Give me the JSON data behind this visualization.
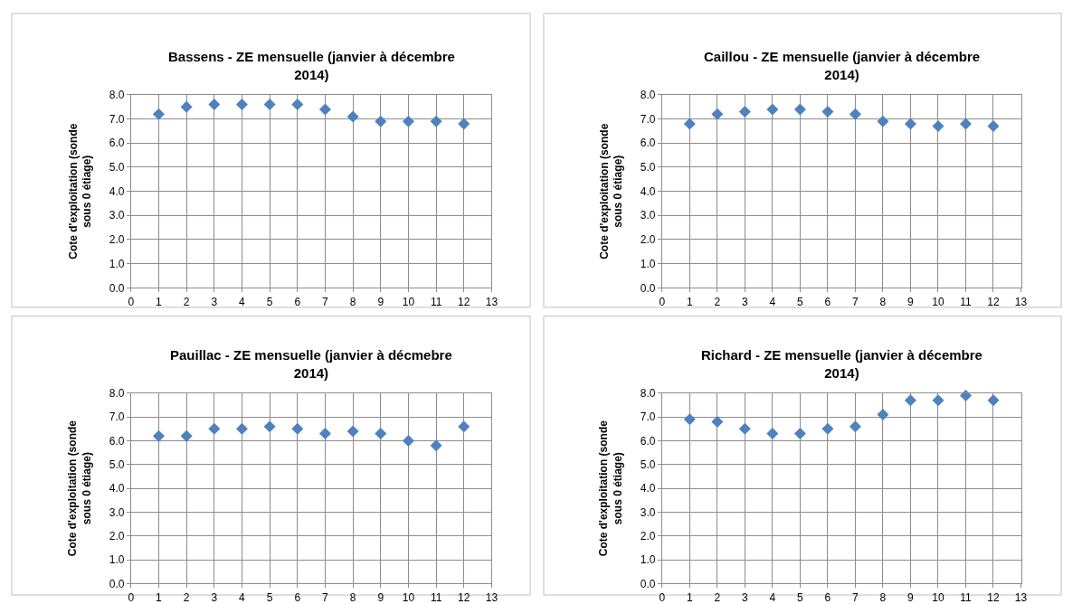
{
  "chart_data": [
    {
      "type": "scatter",
      "title": "Bassens - ZE mensuelle (janvier à décembre 2014)",
      "ylabel": "Cote d'exploitation (sonde sous 0 étiage)",
      "x": [
        1,
        2,
        3,
        4,
        5,
        6,
        7,
        8,
        9,
        10,
        11,
        12
      ],
      "values": [
        7.2,
        7.5,
        7.6,
        7.6,
        7.6,
        7.6,
        7.4,
        7.1,
        6.9,
        6.9,
        6.9,
        6.8
      ],
      "color": "#4f81bd",
      "marker": "diamond",
      "xlim": [
        0,
        13
      ],
      "xticks": [
        0,
        1,
        2,
        3,
        4,
        5,
        6,
        7,
        8,
        9,
        10,
        11,
        12,
        13
      ],
      "ylim": [
        0,
        8
      ],
      "yticks": [
        {
          "value": 0,
          "label": "0.0"
        },
        {
          "value": 1,
          "label": "1.0"
        },
        {
          "value": 2,
          "label": "2.0"
        },
        {
          "value": 3,
          "label": "3.0"
        },
        {
          "value": 4,
          "label": "4.0"
        },
        {
          "value": 5,
          "label": "5.0"
        },
        {
          "value": 6,
          "label": "6.0"
        },
        {
          "value": 7,
          "label": "7.0"
        },
        {
          "value": 8,
          "label": "8.0"
        }
      ],
      "grid": true
    },
    {
      "type": "scatter",
      "title": "Caillou - ZE mensuelle (janvier à décembre 2014)",
      "ylabel": "Cote d'exploitation (sonde sous 0 étiage)",
      "x": [
        1,
        2,
        3,
        4,
        5,
        6,
        7,
        8,
        9,
        10,
        11,
        12
      ],
      "values": [
        6.8,
        7.2,
        7.3,
        7.4,
        7.4,
        7.3,
        7.2,
        6.9,
        6.8,
        6.7,
        6.8,
        6.7
      ],
      "color": "#4f81bd",
      "marker": "diamond",
      "xlim": [
        0,
        13
      ],
      "xticks": [
        0,
        1,
        2,
        3,
        4,
        5,
        6,
        7,
        8,
        9,
        10,
        11,
        12,
        13
      ],
      "ylim": [
        0,
        8
      ],
      "yticks": [
        {
          "value": 0,
          "label": "0.0"
        },
        {
          "value": 1,
          "label": "1.0"
        },
        {
          "value": 2,
          "label": "2.0"
        },
        {
          "value": 3,
          "label": "3.0"
        },
        {
          "value": 4,
          "label": "4.0"
        },
        {
          "value": 5,
          "label": "5.0"
        },
        {
          "value": 6,
          "label": "6.0"
        },
        {
          "value": 7,
          "label": "7.0"
        },
        {
          "value": 8,
          "label": "8.0"
        }
      ],
      "grid": true
    },
    {
      "type": "scatter",
      "title": "Pauillac - ZE mensuelle (janvier à décmebre 2014)",
      "ylabel": "Cote d'exploitation (sonde sous 0 étiage)",
      "x": [
        1,
        2,
        3,
        4,
        5,
        6,
        7,
        8,
        9,
        10,
        11,
        12
      ],
      "values": [
        6.2,
        6.2,
        6.5,
        6.5,
        6.6,
        6.5,
        6.3,
        6.4,
        6.3,
        6.0,
        5.8,
        6.6
      ],
      "color": "#4f81bd",
      "marker": "diamond",
      "xlim": [
        0,
        13
      ],
      "xticks": [
        0,
        1,
        2,
        3,
        4,
        5,
        6,
        7,
        8,
        9,
        10,
        11,
        12,
        13
      ],
      "ylim": [
        0,
        8
      ],
      "yticks": [
        {
          "value": 0,
          "label": "0.0"
        },
        {
          "value": 1,
          "label": "1.0"
        },
        {
          "value": 2,
          "label": "2.0"
        },
        {
          "value": 3,
          "label": "3.0"
        },
        {
          "value": 4,
          "label": "4.0"
        },
        {
          "value": 5,
          "label": "5.0"
        },
        {
          "value": 6,
          "label": "6.0"
        },
        {
          "value": 7,
          "label": "7.0"
        },
        {
          "value": 8,
          "label": "8.0"
        }
      ],
      "grid": true
    },
    {
      "type": "scatter",
      "title": "Richard - ZE mensuelle (janvier à décembre 2014)",
      "ylabel": "Cote d'exploitation (sonde sous 0 étiage)",
      "x": [
        1,
        2,
        3,
        4,
        5,
        6,
        7,
        8,
        9,
        10,
        11,
        12
      ],
      "values": [
        6.9,
        6.8,
        6.5,
        6.3,
        6.3,
        6.5,
        6.6,
        7.1,
        7.7,
        7.7,
        7.9,
        7.7
      ],
      "color": "#4f81bd",
      "marker": "diamond",
      "xlim": [
        0,
        13
      ],
      "xticks": [
        0,
        1,
        2,
        3,
        4,
        5,
        6,
        7,
        8,
        9,
        10,
        11,
        12,
        13
      ],
      "ylim": [
        0,
        8
      ],
      "yticks": [
        {
          "value": 0,
          "label": "0.0"
        },
        {
          "value": 1,
          "label": "1.0"
        },
        {
          "value": 2,
          "label": "2.0"
        },
        {
          "value": 3,
          "label": "3.0"
        },
        {
          "value": 4,
          "label": "4.0"
        },
        {
          "value": 5,
          "label": "5.0"
        },
        {
          "value": 6,
          "label": "6.0"
        },
        {
          "value": 7,
          "label": "7.0"
        },
        {
          "value": 8,
          "label": "8.0"
        }
      ],
      "grid": true
    }
  ]
}
